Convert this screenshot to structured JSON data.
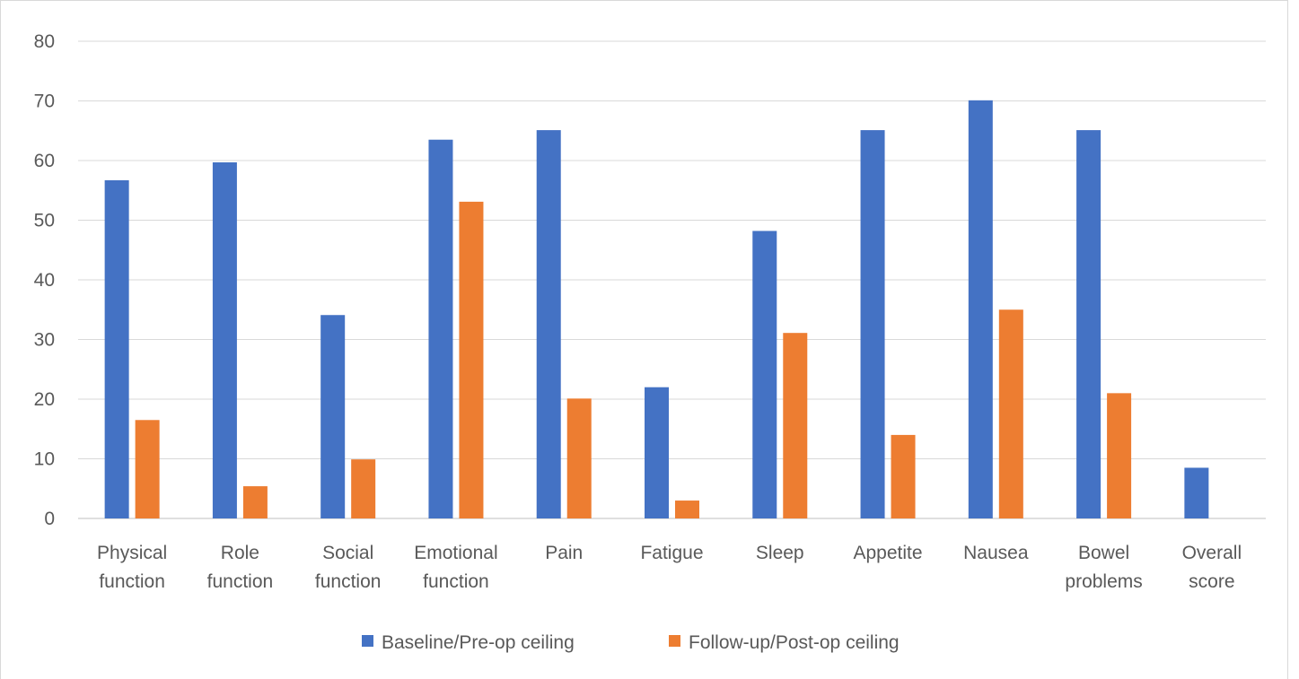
{
  "chart_data": {
    "type": "bar",
    "title": "",
    "xlabel": "",
    "ylabel": "",
    "ylim": [
      0,
      80
    ],
    "yticks": [
      0,
      10,
      20,
      30,
      40,
      50,
      60,
      70,
      80
    ],
    "grid": true,
    "legend_position": "bottom",
    "categories": [
      [
        "Physical",
        "function"
      ],
      [
        "Role",
        "function"
      ],
      [
        "Social",
        "function"
      ],
      [
        "Emotional",
        "function"
      ],
      [
        "Pain"
      ],
      [
        "Fatigue"
      ],
      [
        "Sleep"
      ],
      [
        "Appetite"
      ],
      [
        "Nausea"
      ],
      [
        "Bowel",
        "problems"
      ],
      [
        "Overall",
        "score"
      ]
    ],
    "series": [
      {
        "name": "Baseline/Pre-op ceiling",
        "color": "#4472c4",
        "values": [
          56.7,
          59.7,
          34.1,
          63.5,
          65.1,
          22,
          48.2,
          65.1,
          70.1,
          65.1,
          8.5
        ]
      },
      {
        "name": "Follow-up/Post-op ceiling",
        "color": "#ed7d31",
        "values": [
          16.5,
          5.4,
          9.9,
          53.1,
          20.1,
          3,
          31.1,
          14,
          35,
          21,
          0
        ]
      }
    ]
  }
}
